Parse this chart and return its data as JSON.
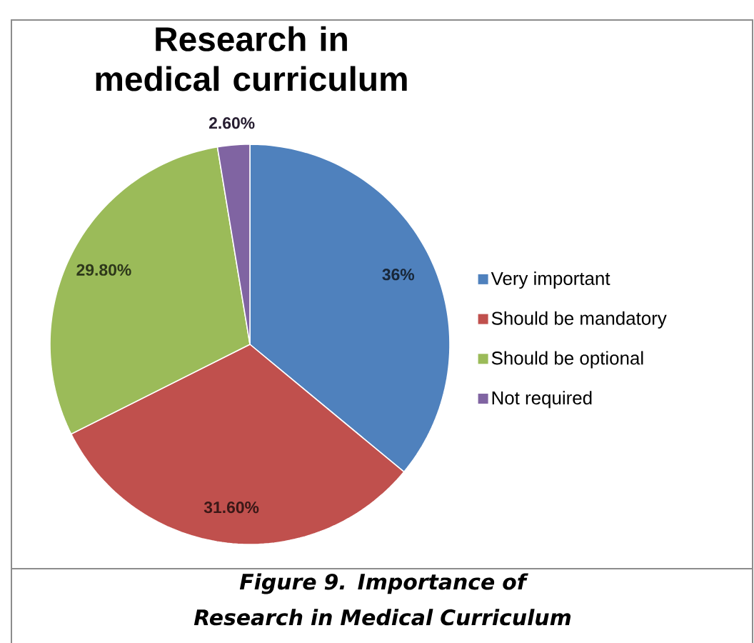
{
  "chart_data": {
    "type": "pie",
    "title": "Research in medical curriculum",
    "categories": [
      "Very important",
      "Should be mandatory",
      "Should be optional",
      "Not required"
    ],
    "values": [
      36,
      31.6,
      29.8,
      2.6
    ],
    "value_labels": [
      "36%",
      "31.60%",
      "29.80%",
      "2.60%"
    ],
    "colors": [
      "#4f81bd",
      "#c0504d",
      "#9bbb59",
      "#8064a2"
    ],
    "legend": "right",
    "annotations": [
      "Figure 9. Importance of Research in Medical Curriculum"
    ]
  }
}
